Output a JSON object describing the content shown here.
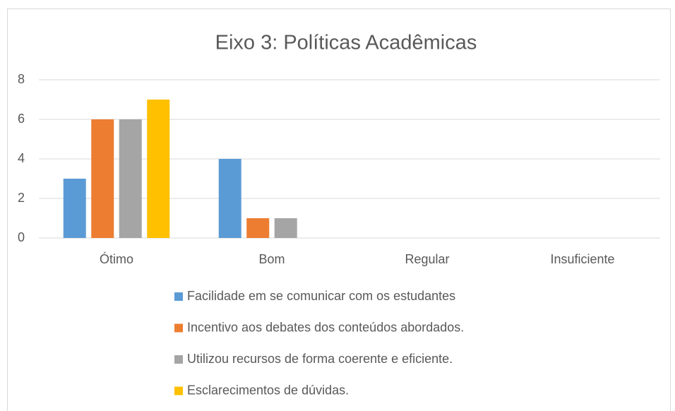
{
  "chart_data": {
    "type": "bar",
    "title": "Eixo 3: Políticas Acadêmicas",
    "categories": [
      "Ótimo",
      "Bom",
      "Regular",
      "Insuficiente"
    ],
    "series": [
      {
        "name": "Facilidade em se comunicar com os estudantes",
        "color": "#5b9bd5",
        "values": [
          3,
          4,
          0,
          0
        ]
      },
      {
        "name": "Incentivo aos debates dos conteúdos abordados.",
        "color": "#ed7d31",
        "values": [
          6,
          1,
          0,
          0
        ]
      },
      {
        "name": "Utilizou recursos de forma coerente e eficiente.",
        "color": "#a5a5a5",
        "values": [
          6,
          1,
          0,
          0
        ]
      },
      {
        "name": "Esclarecimentos de dúvidas.",
        "color": "#ffc000",
        "values": [
          7,
          0,
          0,
          0
        ]
      }
    ],
    "ylim": [
      0,
      8
    ],
    "yticks": [
      0,
      2,
      4,
      6,
      8
    ],
    "grid": true,
    "legend": "bottom"
  }
}
